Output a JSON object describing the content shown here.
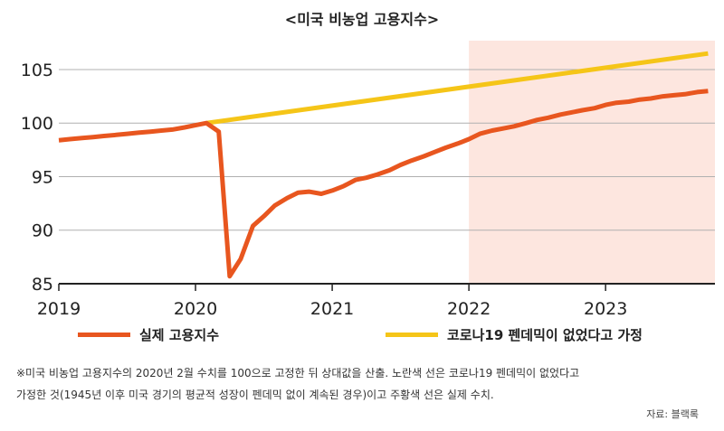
{
  "chart_data": {
    "type": "line",
    "title": "<미국 비농업 고용지수>",
    "xlabel": "",
    "ylabel": "",
    "ylim": [
      85,
      107.7
    ],
    "xlim": [
      2019,
      2023.8
    ],
    "yticks": [
      85,
      90,
      95,
      100,
      105
    ],
    "xticks": [
      2019,
      2020,
      2021,
      2022,
      2023
    ],
    "shaded_from": 2022,
    "colors": {
      "actual": "#e8561f",
      "counterfactual": "#f5c518",
      "shade": "#fde6df",
      "grid": "#b0b0b0"
    },
    "series": [
      {
        "name": "실제 고용지수",
        "key": "actual",
        "x": [
          2019,
          2019.08,
          2019.17,
          2019.25,
          2019.33,
          2019.42,
          2019.5,
          2019.58,
          2019.67,
          2019.75,
          2019.83,
          2019.92,
          2020,
          2020.08,
          2020.17,
          2020.25,
          2020.33,
          2020.42,
          2020.5,
          2020.58,
          2020.67,
          2020.75,
          2020.83,
          2020.92,
          2021,
          2021.08,
          2021.17,
          2021.25,
          2021.33,
          2021.42,
          2021.5,
          2021.58,
          2021.67,
          2021.75,
          2021.83,
          2021.92,
          2022,
          2022.08,
          2022.17,
          2022.25,
          2022.33,
          2022.42,
          2022.5,
          2022.58,
          2022.67,
          2022.75,
          2022.83,
          2022.92,
          2023,
          2023.08,
          2023.17,
          2023.25,
          2023.33,
          2023.42,
          2023.5,
          2023.58,
          2023.67,
          2023.75
        ],
        "values": [
          98.4,
          98.5,
          98.6,
          98.7,
          98.8,
          98.9,
          99.0,
          99.1,
          99.2,
          99.3,
          99.4,
          99.6,
          99.8,
          100,
          99.2,
          85.7,
          87.3,
          90.4,
          91.3,
          92.3,
          93.0,
          93.5,
          93.6,
          93.4,
          93.7,
          94.1,
          94.7,
          94.9,
          95.2,
          95.6,
          96.1,
          96.5,
          96.9,
          97.3,
          97.7,
          98.1,
          98.5,
          99.0,
          99.3,
          99.5,
          99.7,
          100.0,
          100.3,
          100.5,
          100.8,
          101.0,
          101.2,
          101.4,
          101.7,
          101.9,
          102.0,
          102.2,
          102.3,
          102.5,
          102.6,
          102.7,
          102.9,
          103.0
        ]
      },
      {
        "name": "코로나19 펜데믹이 없었다고 가정",
        "key": "counterfactual",
        "x": [
          2020.08,
          2023.75
        ],
        "values": [
          100,
          106.5
        ]
      }
    ]
  },
  "notes": {
    "line1": "※미국 비농업 고용지수의 2020년 2월 수치를 100으로 고정한 뒤 상대값을 산출. 노란색 선은 코로나19 펜데믹이 없었다고",
    "line2": "가정한 것(1945년 이후 미국 경기의 평균적 성장이 펜데믹 없이 계속된 경우)이고 주황색 선은 실제 수치.",
    "source": "자료: 블랙록"
  }
}
